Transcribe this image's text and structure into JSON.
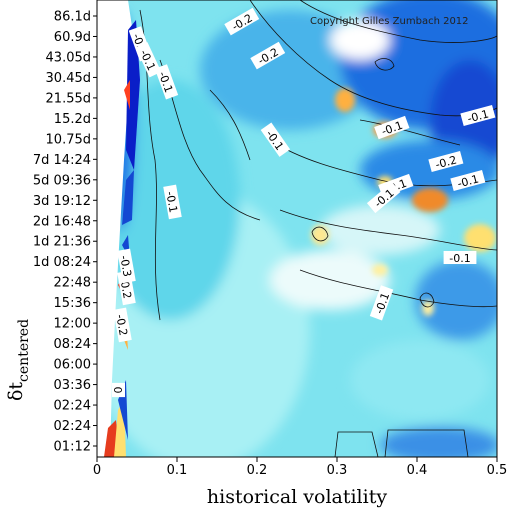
{
  "chart_data": {
    "type": "heatmap",
    "title": "",
    "xlabel": "historical volatility",
    "ylabel_main": "δt",
    "ylabel_sub": "centered",
    "xlim": [
      0,
      0.5
    ],
    "x_ticks": [
      0,
      0.1,
      0.2,
      0.3,
      0.4,
      0.5
    ],
    "x_tick_labels": [
      "0",
      "0.1",
      "0.2",
      "0.3",
      "0.4",
      "0.5"
    ],
    "y_tick_labels": [
      "01:12",
      "02:24",
      "02:24",
      "03:36",
      "06:00",
      "08:24",
      "12:00",
      "15:36",
      "22:48",
      "1d 08:24",
      "1d 21:36",
      "2d 16:48",
      "3d 19:12",
      "5d 09:36",
      "7d 14:24",
      "10.75d",
      "15.2d",
      "21.55d",
      "30.45d",
      "43.05d",
      "60.9d",
      "86.1d"
    ],
    "copyright": "Copyright Gilles Zumbach 2012",
    "contour_labels": [
      "-0.1",
      "-0.1",
      "-0.1",
      "-0.1",
      "-0.1",
      "-0.1",
      "-0.1",
      "-0.1",
      "-0.1",
      "-0.1",
      "-0.2",
      "-0.2",
      "-0.2",
      "-0.2",
      "-0.2",
      "-0.1",
      "-0.3",
      "-0.2",
      "0"
    ],
    "grid": false,
    "colors": {
      "background": "#ffffff",
      "low": "#0a1ec8",
      "mid_low": "#1e78e6",
      "mid": "#64dcf0",
      "neutral": "#ffffff",
      "high": "#ffe678",
      "very_high": "#e63c1e"
    }
  }
}
